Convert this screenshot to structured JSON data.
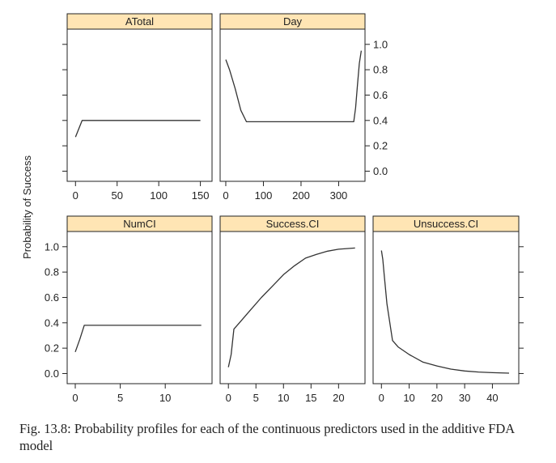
{
  "chart_data": {
    "type": "line",
    "ylabel": "Probability of Success",
    "ylim": [
      0,
      1
    ],
    "yticks": [
      0.0,
      0.2,
      0.4,
      0.6,
      0.8,
      1.0
    ],
    "ytick_labels": [
      "0.0",
      "0.2",
      "0.4",
      "0.6",
      "0.8",
      "1.0"
    ],
    "strip_color": "#ffe5b4",
    "line_color": "#333333",
    "panels": [
      {
        "title": "ATotal",
        "xlim": [
          -10,
          164
        ],
        "xticks": [
          0,
          50,
          100,
          150
        ],
        "x": [
          0,
          8,
          20,
          60,
          100,
          150
        ],
        "y": [
          0.27,
          0.4,
          0.4,
          0.4,
          0.4,
          0.4
        ]
      },
      {
        "title": "Day",
        "xlim": [
          -15,
          370
        ],
        "xticks": [
          0,
          100,
          200,
          300
        ],
        "x": [
          0,
          10,
          25,
          40,
          55,
          100,
          200,
          300,
          340,
          345,
          350,
          355,
          360
        ],
        "y": [
          0.88,
          0.8,
          0.65,
          0.48,
          0.39,
          0.39,
          0.39,
          0.39,
          0.39,
          0.5,
          0.68,
          0.85,
          0.95
        ]
      },
      {
        "title": "NumCI",
        "xlim": [
          -0.9,
          15.2
        ],
        "xticks": [
          0,
          5,
          10
        ],
        "x": [
          0,
          0.5,
          1,
          2,
          5,
          10,
          14
        ],
        "y": [
          0.17,
          0.27,
          0.38,
          0.38,
          0.38,
          0.38,
          0.38
        ]
      },
      {
        "title": "Success.CI",
        "xlim": [
          -1.5,
          24.8
        ],
        "xticks": [
          0,
          5,
          10,
          15,
          20
        ],
        "x": [
          0,
          0.5,
          1,
          2,
          4,
          6,
          8,
          10,
          12,
          14,
          16,
          18,
          20,
          23
        ],
        "y": [
          0.05,
          0.15,
          0.35,
          0.4,
          0.5,
          0.6,
          0.69,
          0.78,
          0.85,
          0.91,
          0.94,
          0.965,
          0.98,
          0.99
        ]
      },
      {
        "title": "Unsuccess.CI",
        "xlim": [
          -3,
          49.5
        ],
        "xticks": [
          0,
          10,
          20,
          30,
          40
        ],
        "x": [
          0,
          0.5,
          1,
          2,
          4,
          6,
          10,
          15,
          20,
          25,
          30,
          35,
          40,
          46
        ],
        "y": [
          0.97,
          0.9,
          0.78,
          0.55,
          0.26,
          0.21,
          0.15,
          0.09,
          0.06,
          0.035,
          0.02,
          0.012,
          0.007,
          0.003
        ]
      }
    ]
  },
  "caption": "Fig. 13.8: Probability profiles for each of the continuous predictors used in the additive FDA model"
}
